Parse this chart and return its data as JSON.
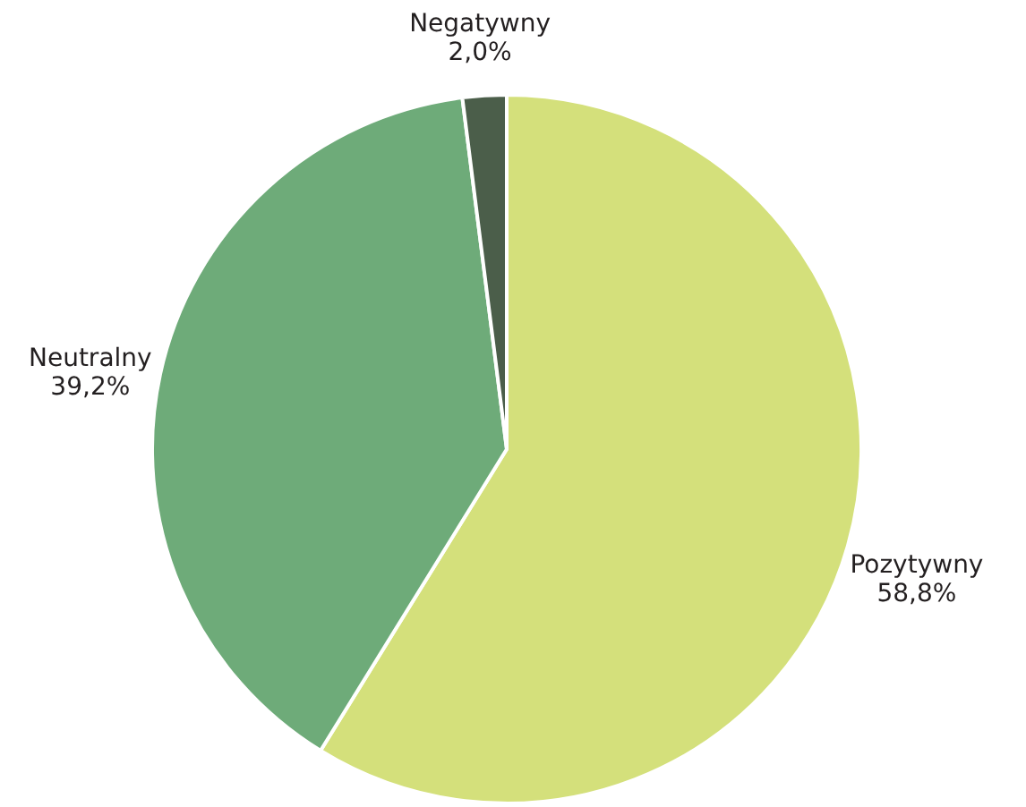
{
  "chart_data": {
    "type": "pie",
    "categories": [
      "Pozytywny",
      "Neutralny",
      "Negatywny"
    ],
    "values": [
      58.8,
      39.2,
      2.0
    ],
    "colors": [
      "#d4e07b",
      "#6eab79",
      "#4b5e4a"
    ],
    "value_labels": [
      "58,8%",
      "39,2%",
      "2,0%"
    ]
  }
}
